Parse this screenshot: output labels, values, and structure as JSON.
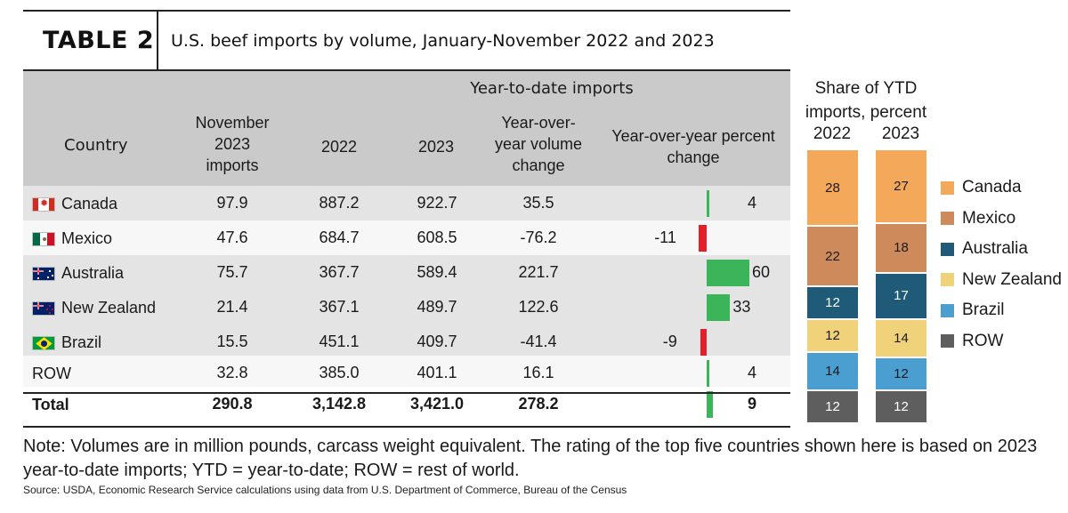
{
  "header": {
    "table_label": "TABLE 2",
    "title": "U.S. beef imports by volume, January-November 2022 and 2023"
  },
  "columns": {
    "group_label": "Year-to-date imports",
    "country": "Country",
    "nov_line1": "November",
    "nov_line2": "2023",
    "nov_line3": "imports",
    "y2022": "2022",
    "y2023": "2023",
    "vol_line1": "Year-over-",
    "vol_line2": "year volume",
    "vol_line3": "change",
    "pct_line1": "Year-over-year percent",
    "pct_line2": "change"
  },
  "rows": [
    {
      "country": "Canada",
      "flag": "canada-flag",
      "nov": "97.9",
      "y2022": "887.2",
      "y2023": "922.7",
      "change": "35.5",
      "pct": 4,
      "pct_label": "4"
    },
    {
      "country": "Mexico",
      "flag": "mexico-flag",
      "nov": "47.6",
      "y2022": "684.7",
      "y2023": "608.5",
      "change": "-76.2",
      "pct": -11,
      "pct_label": "-11"
    },
    {
      "country": "Australia",
      "flag": "australia-flag",
      "nov": "75.7",
      "y2022": "367.7",
      "y2023": "589.4",
      "change": "221.7",
      "pct": 60,
      "pct_label": "60"
    },
    {
      "country": "New Zealand",
      "flag": "new-zealand-flag",
      "nov": "21.4",
      "y2022": "367.1",
      "y2023": "489.7",
      "change": "122.6",
      "pct": 33,
      "pct_label": "33"
    },
    {
      "country": "Brazil",
      "flag": "brazil-flag",
      "nov": "15.5",
      "y2022": "451.1",
      "y2023": "409.7",
      "change": "-41.4",
      "pct": -9,
      "pct_label": "-9"
    },
    {
      "country": "ROW",
      "flag": "",
      "nov": "32.8",
      "y2022": "385.0",
      "y2023": "401.1",
      "change": "16.1",
      "pct": 4,
      "pct_label": "4"
    },
    {
      "country": "Total",
      "flag": "",
      "nov": "290.8",
      "y2022": "3,142.8",
      "y2023": "3,421.0",
      "change": "278.2",
      "pct": 9,
      "pct_label": "9"
    }
  ],
  "colors": {
    "positive": "#3cb55a",
    "negative": "#e3202a",
    "canada": "#f4a85a",
    "mexico": "#cf8a5b",
    "australia": "#1f5a78",
    "new_zealand": "#f0d27a",
    "brazil": "#4a9fd0",
    "row": "#5e5e5e"
  },
  "share_chart": {
    "title_line1": "Share of YTD",
    "title_line2": "imports, percent",
    "year_2022": "2022",
    "year_2023": "2023",
    "legend": [
      "Canada",
      "Mexico",
      "Australia",
      "New Zealand",
      "Brazil",
      "ROW"
    ]
  },
  "chart_data": {
    "type": "bar",
    "title": "Share of YTD imports, percent",
    "categories": [
      "2022",
      "2023"
    ],
    "stacked": true,
    "series": [
      {
        "name": "Canada",
        "values": [
          28,
          27
        ]
      },
      {
        "name": "Mexico",
        "values": [
          22,
          18
        ]
      },
      {
        "name": "Australia",
        "values": [
          12,
          17
        ]
      },
      {
        "name": "New Zealand",
        "values": [
          12,
          14
        ]
      },
      {
        "name": "Brazil",
        "values": [
          14,
          12
        ]
      },
      {
        "name": "ROW",
        "values": [
          12,
          12
        ]
      }
    ],
    "legend_position": "right"
  },
  "note": "Note: Volumes are in million pounds, carcass weight equivalent. The rating of the top five countries shown here is based on 2023 year-to-date imports; YTD = year-to-date; ROW = rest of world.",
  "source": "Source: USDA, Economic Research Service calculations using data from U.S. Department of Commerce, Bureau of the Census"
}
